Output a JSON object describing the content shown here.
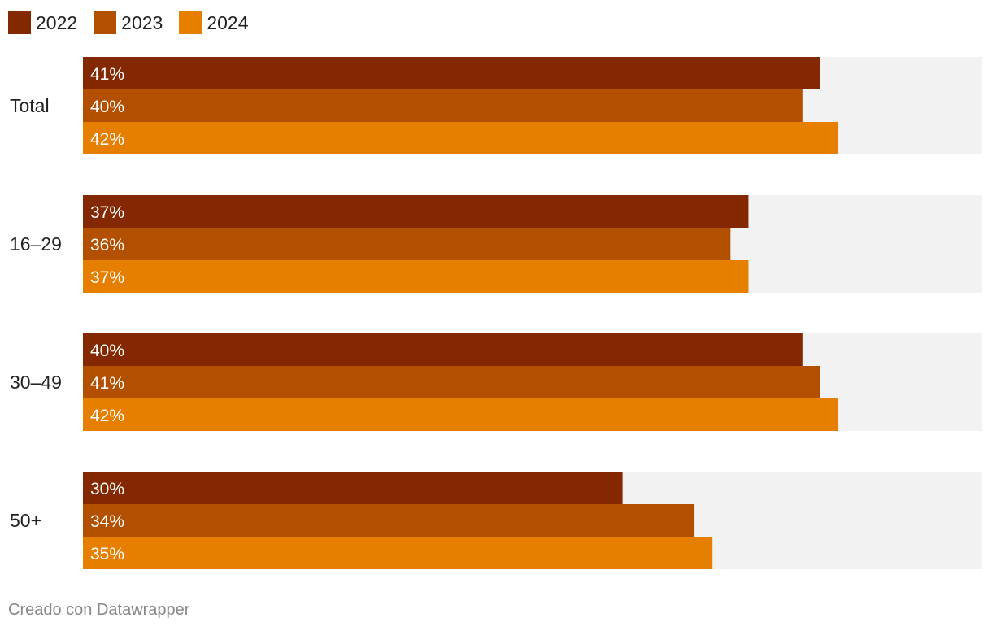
{
  "chart_data": {
    "type": "bar",
    "orientation": "horizontal",
    "categories": [
      "Total",
      "16–29",
      "30–49",
      "50+"
    ],
    "series": [
      {
        "name": "2022",
        "color": "#832800",
        "values": [
          41,
          37,
          40,
          30
        ]
      },
      {
        "name": "2023",
        "color": "#b35000",
        "values": [
          40,
          36,
          41,
          34
        ]
      },
      {
        "name": "2024",
        "color": "#e67e00",
        "values": [
          42,
          37,
          42,
          35
        ]
      }
    ],
    "value_suffix": "%",
    "xlim": [
      0,
      50
    ],
    "background_track_color": "#f2f2f2",
    "legend_position": "top-left",
    "grid": false
  },
  "footer": {
    "credit": "Creado con Datawrapper"
  }
}
